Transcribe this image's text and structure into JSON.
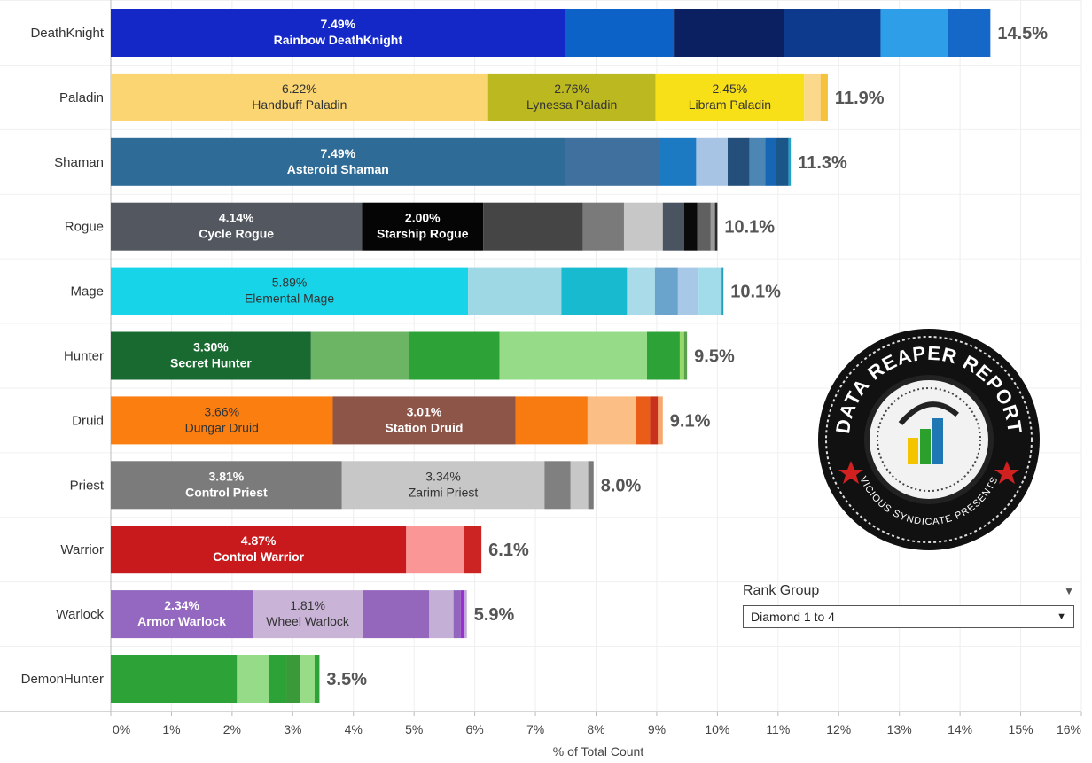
{
  "chart_data": {
    "type": "bar",
    "orientation": "horizontal",
    "stacked": true,
    "xlabel": "% of Total Count",
    "xlim": [
      0,
      16
    ],
    "x_ticks": [
      "0%",
      "1%",
      "2%",
      "3%",
      "4%",
      "5%",
      "6%",
      "7%",
      "8%",
      "9%",
      "10%",
      "11%",
      "12%",
      "13%",
      "14%",
      "15%",
      "16%"
    ],
    "categories": [
      {
        "name": "DeathKnight",
        "total_label": "14.5%",
        "segments": [
          {
            "value": 7.49,
            "color": "#1428c8",
            "pct": "7.49%",
            "label": "Rainbow DeathKnight",
            "text_color": "#ffffff"
          },
          {
            "value": 1.79,
            "color": "#0d62c8"
          },
          {
            "value": 1.82,
            "color": "#0a2060"
          },
          {
            "value": 1.59,
            "color": "#0d3a8c"
          },
          {
            "value": 1.11,
            "color": "#2e9ee8"
          },
          {
            "value": 0.7,
            "color": "#1568c8"
          }
        ]
      },
      {
        "name": "Paladin",
        "total_label": "11.9%",
        "segments": [
          {
            "value": 6.22,
            "color": "#fad572",
            "pct": "6.22%",
            "label": "Handbuff Paladin",
            "text_color": "#333333"
          },
          {
            "value": 2.76,
            "color": "#bcb820",
            "pct": "2.76%",
            "label": "Lynessa Paladin",
            "text_color": "#333333"
          },
          {
            "value": 2.45,
            "color": "#f8e018",
            "pct": "2.45%",
            "label": "Libram Paladin",
            "text_color": "#333333"
          },
          {
            "value": 0.27,
            "color": "#fbd98c"
          },
          {
            "value": 0.07,
            "color": "#f8c040"
          },
          {
            "value": 0.05,
            "color": "#f2c43a"
          }
        ]
      },
      {
        "name": "Shaman",
        "total_label": "11.3%",
        "segments": [
          {
            "value": 7.49,
            "color": "#2e6b97",
            "pct": "7.49%",
            "label": "Asteroid Shaman",
            "text_color": "#ffffff"
          },
          {
            "value": 1.54,
            "color": "#40709e"
          },
          {
            "value": 0.62,
            "color": "#1c7ac3"
          },
          {
            "value": 0.52,
            "color": "#a8c4e5"
          },
          {
            "value": 0.36,
            "color": "#234f7a"
          },
          {
            "value": 0.26,
            "color": "#4b86b4"
          },
          {
            "value": 0.18,
            "color": "#1766b5"
          },
          {
            "value": 0.2,
            "color": "#1a5688"
          },
          {
            "value": 0.04,
            "color": "#26a0c8"
          }
        ]
      },
      {
        "name": "Rogue",
        "total_label": "10.1%",
        "segments": [
          {
            "value": 4.14,
            "color": "#53575f",
            "pct": "4.14%",
            "label": "Cycle Rogue",
            "text_color": "#ffffff"
          },
          {
            "value": 2.0,
            "color": "#050505",
            "pct": "2.00%",
            "label": "Starship Rogue",
            "text_color": "#ffffff"
          },
          {
            "value": 1.64,
            "color": "#454545"
          },
          {
            "value": 0.68,
            "color": "#7a7a7a"
          },
          {
            "value": 0.64,
            "color": "#c7c7c7"
          },
          {
            "value": 0.35,
            "color": "#4a5460"
          },
          {
            "value": 0.22,
            "color": "#0a0a0a"
          },
          {
            "value": 0.22,
            "color": "#606060"
          },
          {
            "value": 0.07,
            "color": "#9a9a9a"
          },
          {
            "value": 0.04,
            "color": "#2a2a2a"
          }
        ]
      },
      {
        "name": "Mage",
        "total_label": "10.1%",
        "segments": [
          {
            "value": 5.89,
            "color": "#18d4e8",
            "pct": "5.89%",
            "label": "Elemental Mage",
            "text_color": "#333333"
          },
          {
            "value": 1.54,
            "color": "#9ed8e4"
          },
          {
            "value": 1.08,
            "color": "#17bace"
          },
          {
            "value": 0.46,
            "color": "#a9dce8"
          },
          {
            "value": 0.38,
            "color": "#6aa4cc"
          },
          {
            "value": 0.34,
            "color": "#a8c8e8"
          },
          {
            "value": 0.38,
            "color": "#a2dcea"
          },
          {
            "value": 0.03,
            "color": "#26a0b8"
          }
        ]
      },
      {
        "name": "Hunter",
        "total_label": "9.5%",
        "segments": [
          {
            "value": 3.3,
            "color": "#196a30",
            "pct": "3.30%",
            "label": "Secret Hunter",
            "text_color": "#ffffff"
          },
          {
            "value": 1.62,
            "color": "#6bb565"
          },
          {
            "value": 1.49,
            "color": "#2da236"
          },
          {
            "value": 2.43,
            "color": "#96dc88"
          },
          {
            "value": 0.54,
            "color": "#2da236"
          },
          {
            "value": 0.07,
            "color": "#96d86c"
          },
          {
            "value": 0.05,
            "color": "#5aa050"
          }
        ]
      },
      {
        "name": "Druid",
        "total_label": "9.1%",
        "segments": [
          {
            "value": 3.66,
            "color": "#fa7f10",
            "pct": "3.66%",
            "label": "Dungar Druid",
            "text_color": "#333333"
          },
          {
            "value": 3.01,
            "color": "#8d5448",
            "pct": "3.01%",
            "label": "Station Druid",
            "text_color": "#ffffff"
          },
          {
            "value": 1.19,
            "color": "#f87b12"
          },
          {
            "value": 0.8,
            "color": "#fbbe84"
          },
          {
            "value": 0.23,
            "color": "#ea5d18"
          },
          {
            "value": 0.13,
            "color": "#c8321c"
          },
          {
            "value": 0.08,
            "color": "#f6a86c"
          }
        ]
      },
      {
        "name": "Priest",
        "total_label": "8.0%",
        "segments": [
          {
            "value": 3.81,
            "color": "#7b7b7b",
            "pct": "3.81%",
            "label": "Control Priest",
            "text_color": "#ffffff"
          },
          {
            "value": 3.34,
            "color": "#c7c7c7",
            "pct": "3.34%",
            "label": "Zarimi Priest",
            "text_color": "#333333"
          },
          {
            "value": 0.43,
            "color": "#808080"
          },
          {
            "value": 0.29,
            "color": "#c7c7c7"
          },
          {
            "value": 0.09,
            "color": "#7a7a7a"
          }
        ]
      },
      {
        "name": "Warrior",
        "total_label": "6.1%",
        "segments": [
          {
            "value": 4.87,
            "color": "#c81a1c",
            "pct": "4.87%",
            "label": "Control Warrior",
            "text_color": "#ffffff"
          },
          {
            "value": 0.96,
            "color": "#fa9696"
          },
          {
            "value": 0.28,
            "color": "#cc2422"
          }
        ]
      },
      {
        "name": "Warlock",
        "total_label": "5.9%",
        "segments": [
          {
            "value": 2.34,
            "color": "#9467c0",
            "pct": "2.34%",
            "label": "Armor Warlock",
            "text_color": "#ffffff"
          },
          {
            "value": 1.81,
            "color": "#c9b3d7",
            "pct": "1.81%",
            "label": "Wheel Warlock",
            "text_color": "#333333"
          },
          {
            "value": 1.1,
            "color": "#9467bd"
          },
          {
            "value": 0.4,
            "color": "#c4b0d6"
          },
          {
            "value": 0.12,
            "color": "#9266bc"
          },
          {
            "value": 0.06,
            "color": "#9b30d0"
          },
          {
            "value": 0.04,
            "color": "#c0a6dc"
          }
        ]
      },
      {
        "name": "DemonHunter",
        "total_label": "3.5%",
        "segments": [
          {
            "value": 2.08,
            "color": "#2da236"
          },
          {
            "value": 0.52,
            "color": "#96dc88"
          },
          {
            "value": 0.3,
            "color": "#2da236"
          },
          {
            "value": 0.23,
            "color": "#3a9a3a"
          },
          {
            "value": 0.23,
            "color": "#98dc88"
          },
          {
            "value": 0.08,
            "color": "#2da236"
          }
        ]
      }
    ]
  },
  "filter": {
    "title": "Rank Group",
    "selected": "Diamond 1 to 4"
  },
  "logo": {
    "line1": "DATA REAPER REPORT",
    "line2": "VICIOUS SYNDICATE PRESENTS"
  }
}
